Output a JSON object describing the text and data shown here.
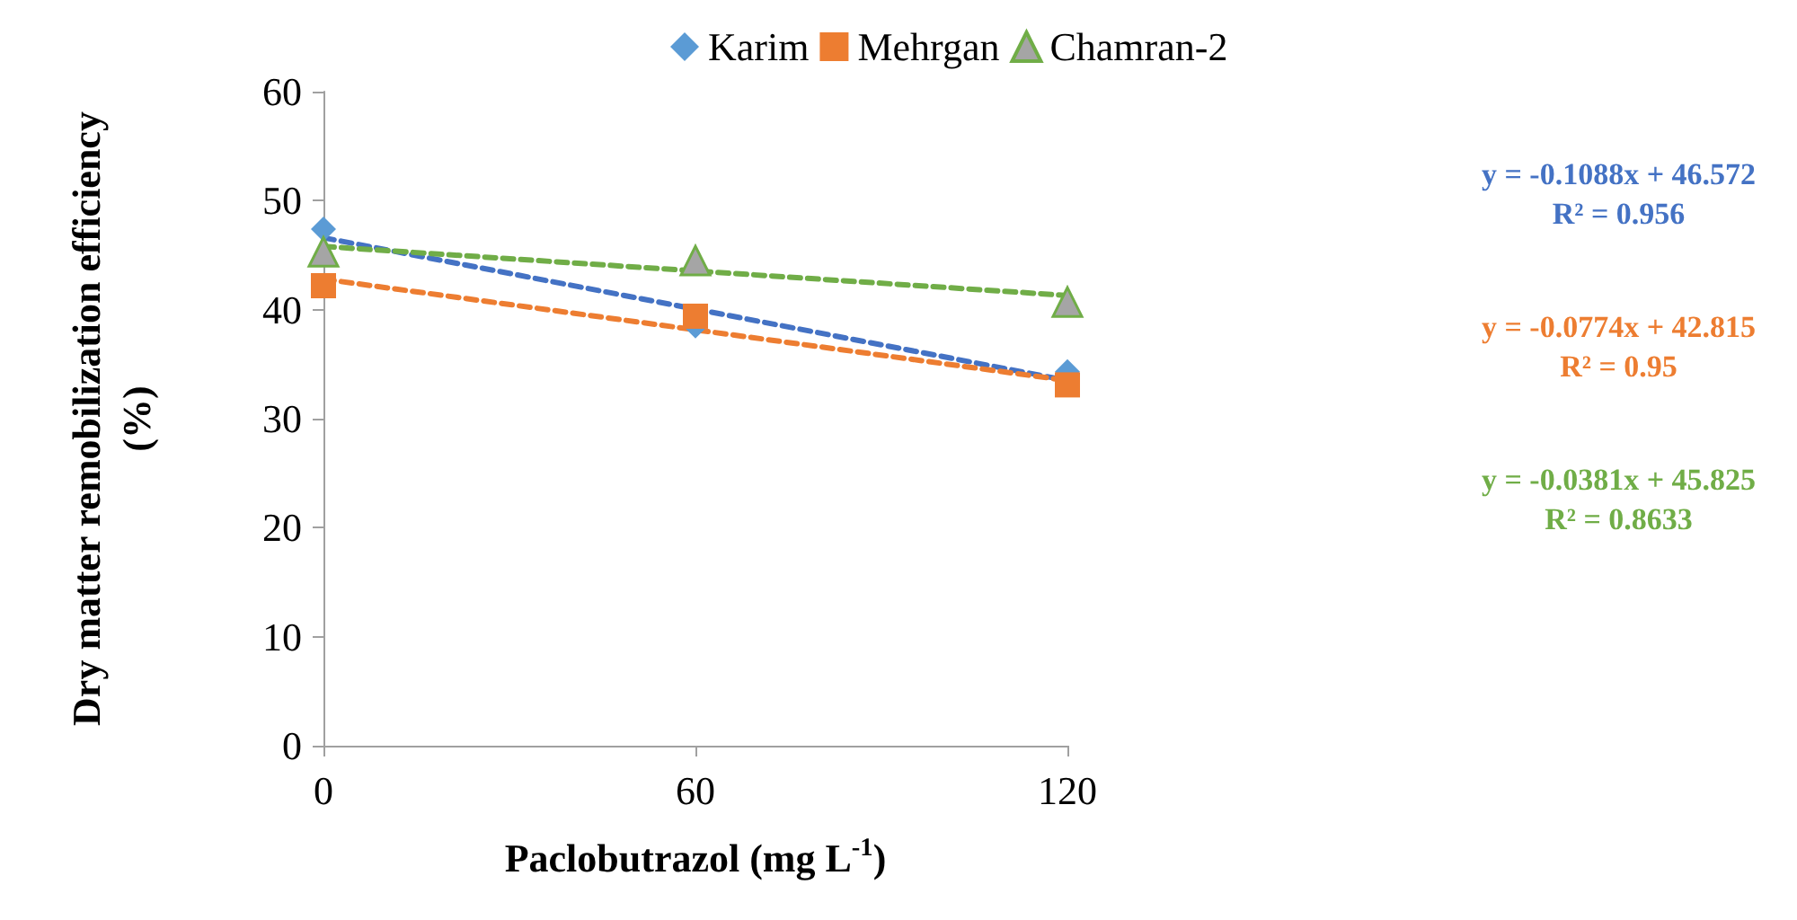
{
  "chart_data": {
    "type": "scatter",
    "xlabel": "Paclobutrazol (mg L$^{-1}$)",
    "ylabel": "Dry matter remobilization efficiency\n(%)",
    "xlim": [
      0,
      120
    ],
    "xticks": [
      0,
      60,
      120
    ],
    "ylim": [
      0,
      60
    ],
    "yticks": [
      0,
      10,
      20,
      30,
      40,
      50,
      60
    ],
    "grid": false,
    "legend": "top",
    "series": [
      {
        "name": "Karim",
        "marker": "diamond",
        "color": "#5b9bd5",
        "x": [
          0,
          60,
          120
        ],
        "values": [
          47.4,
          38.5,
          34.3
        ]
      },
      {
        "name": "Mehrgan",
        "marker": "square",
        "color": "#ed7d31",
        "x": [
          0,
          60,
          120
        ],
        "values": [
          42.2,
          39.4,
          33.1
        ]
      },
      {
        "name": "Chamran-2",
        "marker": "triangle",
        "color": "#a5a5a5",
        "x": [
          0,
          60,
          120
        ],
        "values": [
          45.3,
          44.5,
          40.7
        ]
      },
      {
        "type": "line",
        "marker": "none",
        "line_style": "dashed",
        "color": "#4472c4",
        "x": [
          0,
          120
        ],
        "values": [
          46.6,
          33.5
        ]
      },
      {
        "type": "line",
        "marker": "none",
        "line_style": "dashed",
        "color": "#ed7d31",
        "x": [
          0,
          120
        ],
        "values": [
          42.8,
          33.5
        ]
      },
      {
        "type": "line",
        "marker": "none",
        "line_style": "dashed",
        "color": "#70ad47",
        "x": [
          0,
          120
        ],
        "values": [
          45.8,
          41.3
        ]
      }
    ],
    "annotations": [
      "y = -0.1088x + 46.572\nR² = 0.956",
      "y = -0.0774x + 42.815\nR² = 0.95",
      "y = -0.0381x + 45.825\nR² = 0.8633"
    ]
  }
}
